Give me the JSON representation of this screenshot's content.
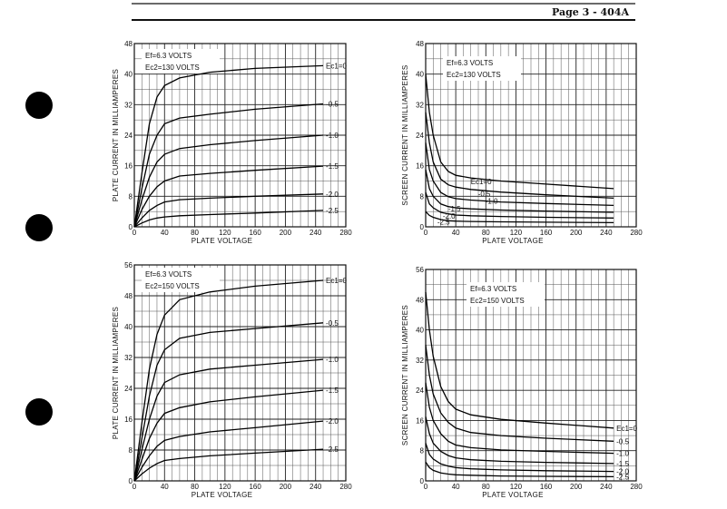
{
  "page_header": "Page 3 - 404A",
  "chart_data": [
    {
      "type": "line",
      "title": "",
      "xlabel": "PLATE VOLTAGE",
      "ylabel": "PLATE CURRENT IN MILLIAMPERES",
      "xlim": [
        0,
        280
      ],
      "ylim": [
        0,
        48
      ],
      "xticks": [
        "0",
        "40",
        "80",
        "120",
        "160",
        "200",
        "240",
        "280"
      ],
      "yticks": [
        "0",
        "8",
        "16",
        "24",
        "32",
        "40",
        "48"
      ],
      "grid": true,
      "annotations": [
        "Ef=6.3 VOLTS",
        "Ec2=130 VOLTS"
      ],
      "series": [
        {
          "name": "Ec1=0",
          "label_text": "Ec1=0",
          "x": [
            0,
            10,
            20,
            30,
            40,
            60,
            100,
            160,
            250
          ],
          "y": [
            0,
            14,
            27,
            34,
            37,
            39,
            40.5,
            41.5,
            42.2
          ]
        },
        {
          "name": "-0.5",
          "label_text": "-0.5",
          "x": [
            0,
            10,
            20,
            30,
            40,
            60,
            100,
            160,
            250
          ],
          "y": [
            0,
            10,
            19,
            24,
            27,
            28.5,
            29.5,
            30.8,
            32.2
          ]
        },
        {
          "name": "-1.0",
          "label_text": "-1.0",
          "x": [
            0,
            10,
            20,
            30,
            40,
            60,
            100,
            160,
            250
          ],
          "y": [
            0,
            7,
            13,
            17,
            19,
            20.5,
            21.5,
            22.6,
            24
          ]
        },
        {
          "name": "-1.5",
          "label_text": "-1.5",
          "x": [
            0,
            10,
            20,
            30,
            40,
            60,
            100,
            160,
            250
          ],
          "y": [
            0,
            4.5,
            8,
            10.5,
            12,
            13.3,
            14,
            14.8,
            15.9
          ]
        },
        {
          "name": "-2.0",
          "label_text": "-2.0",
          "x": [
            0,
            10,
            20,
            30,
            40,
            60,
            100,
            160,
            250
          ],
          "y": [
            0,
            2.3,
            4.3,
            5.6,
            6.5,
            7.1,
            7.5,
            8,
            8.6
          ]
        },
        {
          "name": "-2.5",
          "label_text": "-2.5",
          "x": [
            0,
            10,
            20,
            30,
            40,
            60,
            100,
            160,
            250
          ],
          "y": [
            0,
            1,
            1.8,
            2.3,
            2.6,
            2.9,
            3.2,
            3.6,
            4.3
          ]
        }
      ]
    },
    {
      "type": "line",
      "title": "",
      "xlabel": "PLATE VOLTAGE",
      "ylabel": "SCREEN CURRENT IN MILLIAMPERES",
      "xlim": [
        0,
        280
      ],
      "ylim": [
        0,
        48
      ],
      "xticks": [
        "0",
        "40",
        "80",
        "120",
        "160",
        "200",
        "240",
        "280"
      ],
      "yticks": [
        "0",
        "8",
        "16",
        "24",
        "32",
        "40",
        "48"
      ],
      "grid": true,
      "annotations": [
        "Ef=6.3 VOLTS",
        "Ec2=130 VOLTS"
      ],
      "series": [
        {
          "name": "Ec1=0",
          "label_text": "Ec1=0",
          "x": [
            0,
            5,
            10,
            20,
            30,
            40,
            60,
            100,
            160,
            250
          ],
          "y": [
            40,
            30,
            24,
            17,
            14.5,
            13.5,
            12.8,
            12,
            11.2,
            10
          ]
        },
        {
          "name": "-0.5",
          "label_text": "-0.5",
          "x": [
            0,
            5,
            10,
            20,
            30,
            40,
            60,
            100,
            160,
            250
          ],
          "y": [
            30,
            22,
            17,
            12.5,
            11,
            10.4,
            9.8,
            9.1,
            8.4,
            7.5
          ]
        },
        {
          "name": "-1.0",
          "label_text": "-1.0",
          "x": [
            0,
            5,
            10,
            20,
            30,
            40,
            60,
            100,
            160,
            250
          ],
          "y": [
            22,
            15,
            12,
            9,
            7.9,
            7.4,
            7,
            6.5,
            6.1,
            5.6
          ]
        },
        {
          "name": "-1.5",
          "label_text": "-1.5",
          "x": [
            0,
            5,
            10,
            20,
            30,
            40,
            60,
            100,
            160,
            250
          ],
          "y": [
            15,
            10,
            8,
            6,
            5.3,
            5,
            4.7,
            4.4,
            4.1,
            3.8
          ]
        },
        {
          "name": "-2.0",
          "label_text": "-2.0",
          "x": [
            0,
            5,
            10,
            20,
            30,
            40,
            60,
            100,
            160,
            250
          ],
          "y": [
            9,
            6,
            5,
            3.8,
            3.4,
            3.1,
            2.9,
            2.7,
            2.5,
            2.3
          ]
        },
        {
          "name": "-2.5",
          "label_text": "-2.5",
          "x": [
            0,
            5,
            10,
            20,
            30,
            40,
            60,
            100,
            160,
            250
          ],
          "y": [
            4,
            3,
            2.5,
            1.9,
            1.6,
            1.5,
            1.4,
            1.3,
            1.2,
            1.1
          ]
        }
      ]
    },
    {
      "type": "line",
      "title": "",
      "xlabel": "PLATE VOLTAGE",
      "ylabel": "PLATE CURRENT IN MILLIAMPERES",
      "xlim": [
        0,
        280
      ],
      "ylim": [
        0,
        56
      ],
      "xticks": [
        "0",
        "40",
        "80",
        "120",
        "160",
        "200",
        "240",
        "280"
      ],
      "yticks": [
        "0",
        "8",
        "16",
        "24",
        "32",
        "40",
        "48",
        "56"
      ],
      "grid": true,
      "annotations": [
        "Ef=6.3 VOLTS",
        "Ec2=150 VOLTS"
      ],
      "series": [
        {
          "name": "Ec1=0",
          "label_text": "Ec1=0",
          "x": [
            0,
            10,
            20,
            30,
            40,
            60,
            100,
            160,
            250
          ],
          "y": [
            0,
            15,
            29,
            38,
            43,
            47,
            49,
            50.5,
            52
          ]
        },
        {
          "name": "-0.5",
          "label_text": "-0.5",
          "x": [
            0,
            10,
            20,
            30,
            40,
            60,
            100,
            160,
            250
          ],
          "y": [
            0,
            11,
            22,
            30,
            34,
            37,
            38.5,
            39.5,
            41
          ]
        },
        {
          "name": "-1.0",
          "label_text": "-1.0",
          "x": [
            0,
            10,
            20,
            30,
            40,
            60,
            100,
            160,
            250
          ],
          "y": [
            0,
            8,
            16,
            22,
            25.5,
            27.5,
            29,
            30,
            31.5
          ]
        },
        {
          "name": "-1.5",
          "label_text": "-1.5",
          "x": [
            0,
            10,
            20,
            30,
            40,
            60,
            100,
            160,
            250
          ],
          "y": [
            0,
            5.5,
            11,
            15,
            17.5,
            19,
            20.5,
            21.8,
            23.5
          ]
        },
        {
          "name": "-2.0",
          "label_text": "-2.0",
          "x": [
            0,
            10,
            20,
            30,
            40,
            60,
            100,
            160,
            250
          ],
          "y": [
            0,
            3.5,
            6.5,
            9,
            10.5,
            11.5,
            12.7,
            13.8,
            15.5
          ]
        },
        {
          "name": "-2.5",
          "label_text": "-2.5",
          "x": [
            0,
            10,
            20,
            30,
            40,
            60,
            100,
            160,
            250
          ],
          "y": [
            0,
            1.8,
            3.3,
            4.5,
            5.3,
            5.8,
            6.5,
            7.2,
            8.2
          ]
        }
      ]
    },
    {
      "type": "line",
      "title": "",
      "xlabel": "PLATE VOLTAGE",
      "ylabel": "SCREEN CURRENT IN MILLIAMPERES",
      "xlim": [
        0,
        280
      ],
      "ylim": [
        0,
        56
      ],
      "xticks": [
        "0",
        "40",
        "80",
        "120",
        "160",
        "200",
        "240",
        "280"
      ],
      "yticks": [
        "0",
        "8",
        "16",
        "24",
        "32",
        "40",
        "48",
        "56"
      ],
      "grid": true,
      "annotations": [
        "Ef=6.3 VOLTS",
        "Ec2=150 VOLTS"
      ],
      "series": [
        {
          "name": "Ec1=0",
          "label_text": "Ec1=0",
          "x": [
            0,
            5,
            10,
            20,
            30,
            40,
            60,
            100,
            160,
            250
          ],
          "y": [
            50,
            40,
            33,
            25,
            21,
            19,
            17.5,
            16.3,
            15.3,
            14
          ]
        },
        {
          "name": "-0.5",
          "label_text": "-0.5",
          "x": [
            0,
            5,
            10,
            20,
            30,
            40,
            60,
            100,
            160,
            250
          ],
          "y": [
            36,
            28,
            23,
            18,
            15.5,
            14,
            12.8,
            12,
            11.3,
            10.5
          ]
        },
        {
          "name": "-1.0",
          "label_text": "-1.0",
          "x": [
            0,
            5,
            10,
            20,
            30,
            40,
            60,
            100,
            160,
            250
          ],
          "y": [
            26,
            19.5,
            16,
            12.5,
            10.5,
            9.5,
            8.8,
            8.2,
            7.8,
            7.3
          ]
        },
        {
          "name": "-1.5",
          "label_text": "-1.5",
          "x": [
            0,
            5,
            10,
            20,
            30,
            40,
            60,
            100,
            160,
            250
          ],
          "y": [
            17,
            12.5,
            10,
            7.8,
            6.7,
            6.1,
            5.6,
            5.2,
            4.9,
            4.6
          ]
        },
        {
          "name": "-2.0",
          "label_text": "-2.0",
          "x": [
            0,
            5,
            10,
            20,
            30,
            40,
            60,
            100,
            160,
            250
          ],
          "y": [
            10,
            7,
            5.8,
            4.5,
            3.9,
            3.5,
            3.2,
            2.9,
            2.7,
            2.5
          ]
        },
        {
          "name": "-2.5",
          "label_text": "-2.5",
          "x": [
            0,
            5,
            10,
            20,
            30,
            40,
            60,
            100,
            160,
            250
          ],
          "y": [
            5,
            3.5,
            2.8,
            2.1,
            1.8,
            1.6,
            1.5,
            1.3,
            1.2,
            1.1
          ]
        }
      ]
    }
  ]
}
